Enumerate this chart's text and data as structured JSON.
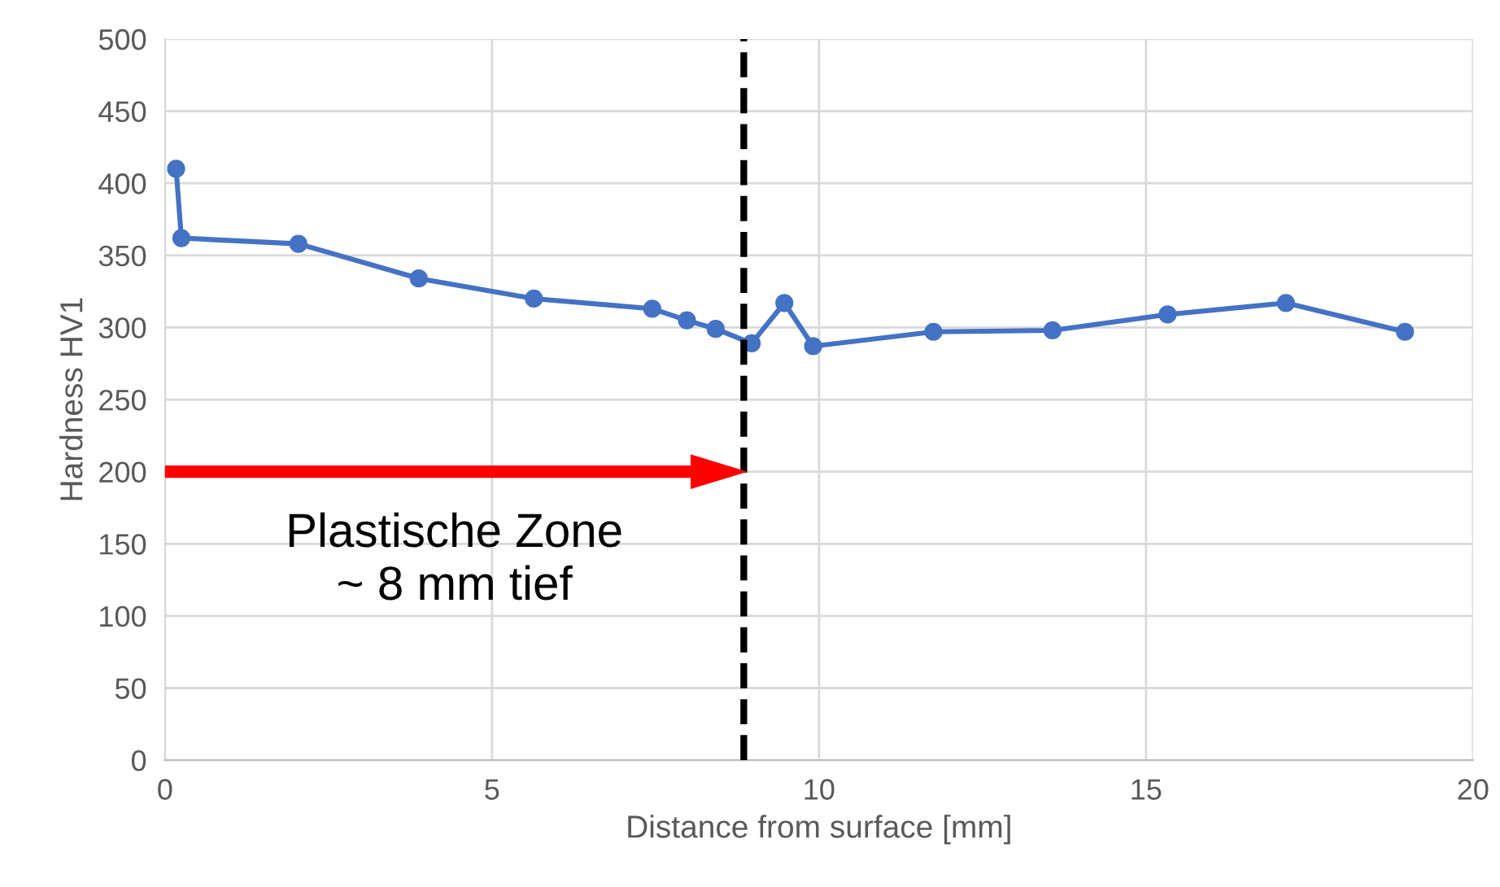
{
  "chart_data": {
    "type": "line",
    "xlabel": "Distance from surface [mm]",
    "ylabel": "Hardness HV1",
    "x": [
      0.17,
      0.25,
      2.04,
      3.88,
      5.64,
      7.45,
      7.98,
      8.42,
      8.97,
      9.47,
      9.91,
      11.75,
      13.57,
      15.33,
      17.14,
      18.96
    ],
    "series": [
      {
        "color": "#4472c4",
        "values": [
          410,
          362,
          358,
          334,
          320,
          313,
          305,
          299,
          289,
          317,
          287,
          297,
          298,
          309,
          317,
          297
        ]
      }
    ],
    "xlim": [
      0,
      20
    ],
    "xticks": [
      0,
      5,
      10,
      15,
      20
    ],
    "ylim": [
      0,
      500
    ],
    "yticks": [
      0,
      50,
      100,
      150,
      200,
      250,
      300,
      350,
      400,
      450,
      500
    ],
    "grid": true,
    "marker": "circle",
    "line_style": "solid",
    "ref_lines": [
      {
        "axis": "x",
        "value": 8.85,
        "color": "#000000",
        "line_style": "dashed"
      }
    ],
    "annotations": [
      {
        "text": "Plastische Zone\n~ 8 mm tief",
        "x": 8.85,
        "y": 200
      }
    ]
  }
}
